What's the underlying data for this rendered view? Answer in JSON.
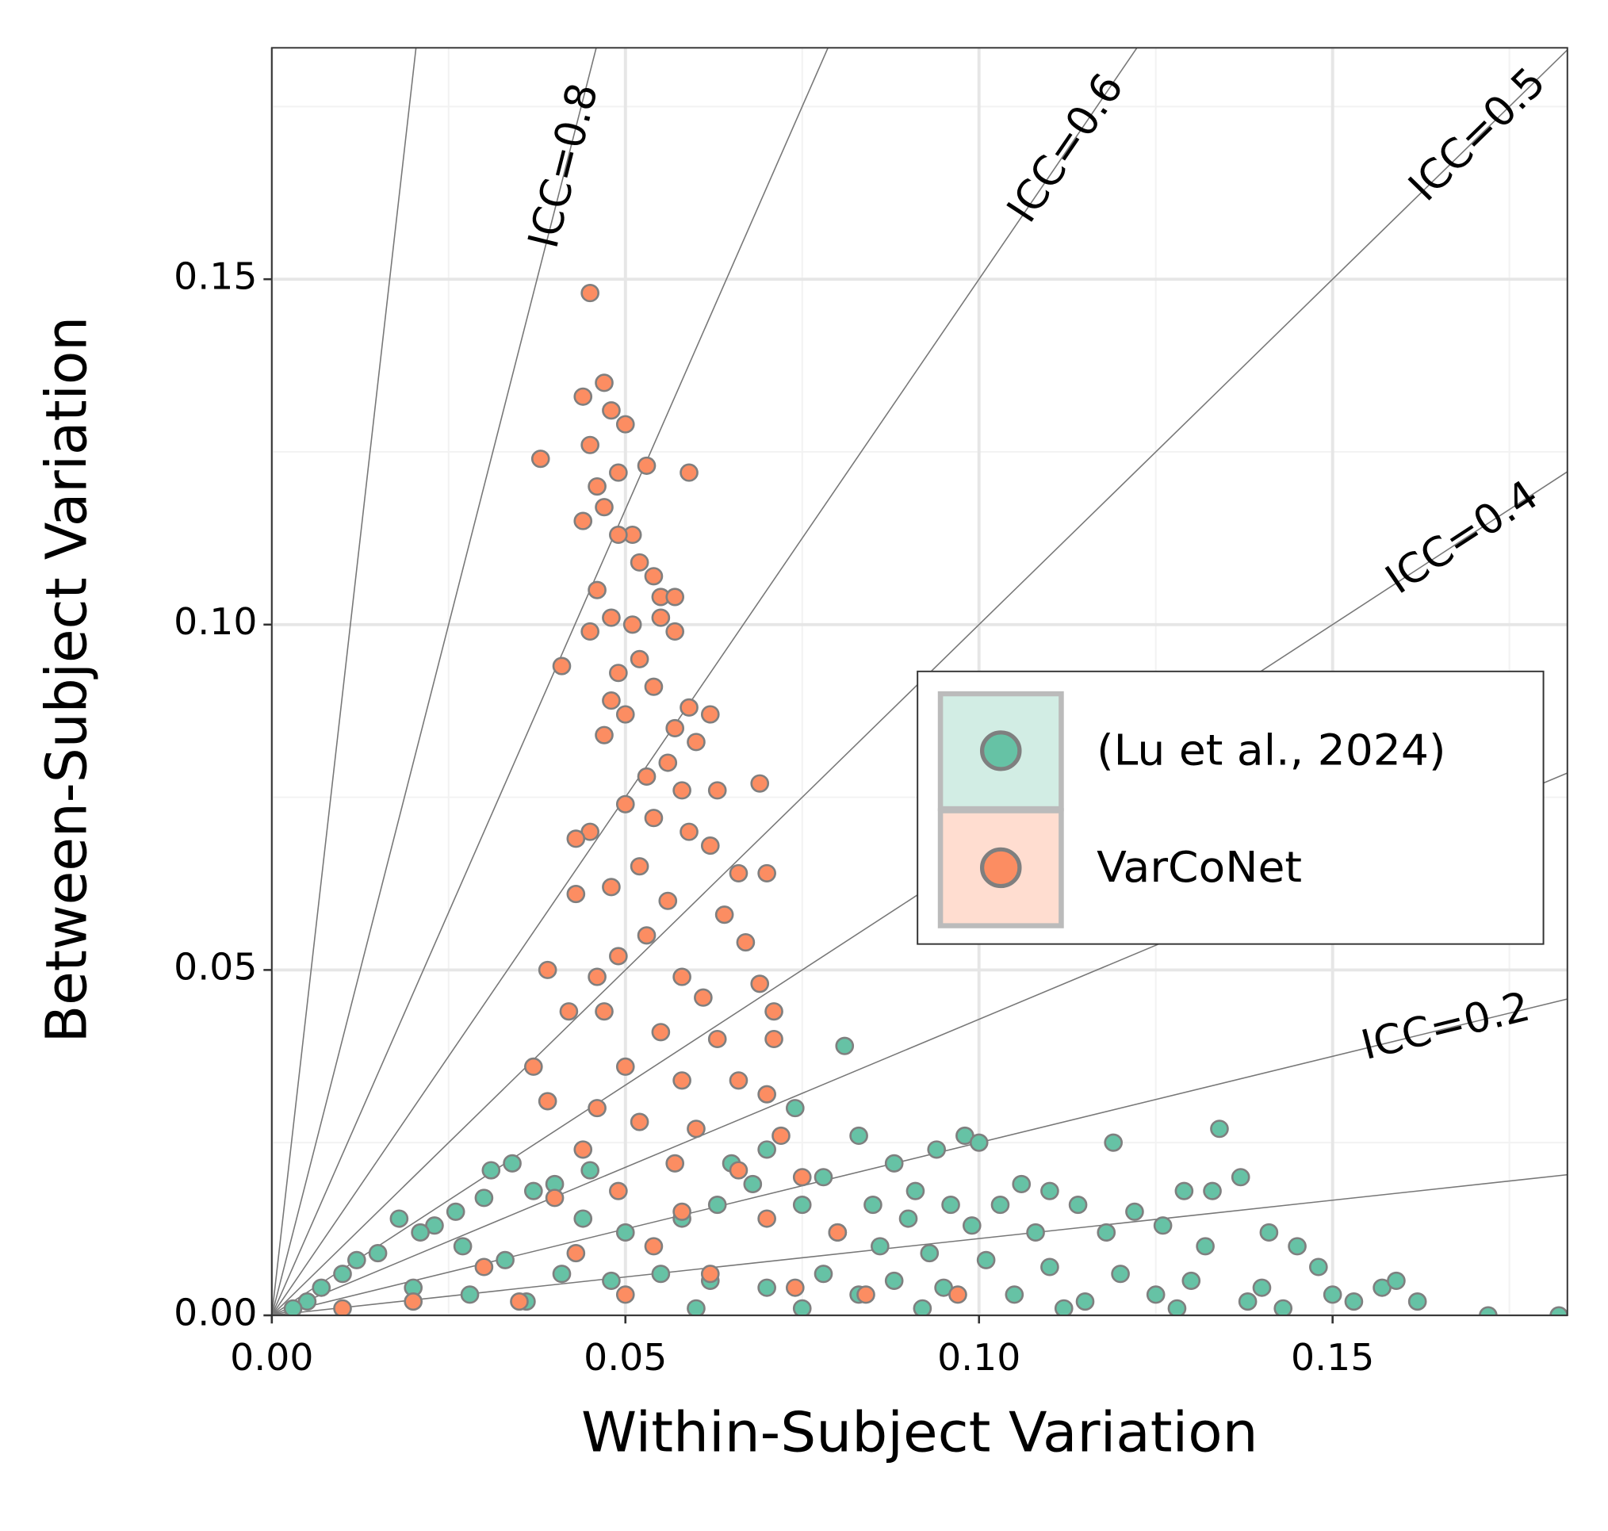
{
  "chart_data": {
    "type": "scatter",
    "xlabel": "Within-Subject Variation",
    "ylabel": "Between-Subject Variation",
    "xlim": [
      0,
      0.1832
    ],
    "ylim": [
      0,
      0.1835
    ],
    "xticks": [
      {
        "value": 0,
        "label": "0.00"
      },
      {
        "value": 0.05,
        "label": "0.05"
      },
      {
        "value": 0.1,
        "label": "0.10"
      },
      {
        "value": 0.15,
        "label": "0.15"
      }
    ],
    "yticks": [
      {
        "value": 0,
        "label": "0.00"
      },
      {
        "value": 0.05,
        "label": "0.05"
      },
      {
        "value": 0.1,
        "label": "0.10"
      },
      {
        "value": 0.15,
        "label": "0.15"
      }
    ],
    "xminor": [
      0.025,
      0.075,
      0.125,
      0.175
    ],
    "yminor": [
      0.025,
      0.075,
      0.125,
      0.175
    ],
    "grid": true,
    "legend": "right",
    "icc_lines": [
      0.1,
      {
        "value": 0.2,
        "label": "ICC=0.2"
      },
      0.3,
      {
        "value": 0.4,
        "label": "ICC=0.4"
      },
      {
        "value": 0.5,
        "label": "ICC=0.5"
      },
      {
        "value": 0.6,
        "label": "ICC=0.6"
      },
      0.7,
      {
        "value": 0.8,
        "label": "ICC=0.8"
      },
      0.9
    ],
    "series": [
      {
        "name": "(Lu et al., 2024)",
        "color": "#66c2a5",
        "x": [
          0.081,
          0.134,
          0.119,
          0.098,
          0.1,
          0.074,
          0.083,
          0.137,
          0.133,
          0.129,
          0.106,
          0.11,
          0.094,
          0.088,
          0.091,
          0.096,
          0.103,
          0.114,
          0.122,
          0.126,
          0.141,
          0.145,
          0.132,
          0.118,
          0.108,
          0.099,
          0.09,
          0.085,
          0.078,
          0.07,
          0.065,
          0.068,
          0.075,
          0.08,
          0.086,
          0.093,
          0.101,
          0.11,
          0.12,
          0.13,
          0.14,
          0.15,
          0.157,
          0.162,
          0.172,
          0.182,
          0.148,
          0.159,
          0.153,
          0.138,
          0.125,
          0.115,
          0.105,
          0.095,
          0.088,
          0.045,
          0.04,
          0.034,
          0.031,
          0.037,
          0.03,
          0.026,
          0.023,
          0.018,
          0.021,
          0.015,
          0.012,
          0.01,
          0.007,
          0.005,
          0.003,
          0.027,
          0.033,
          0.041,
          0.048,
          0.055,
          0.062,
          0.07,
          0.078,
          0.083,
          0.05,
          0.058,
          0.063,
          0.044,
          0.02,
          0.028,
          0.036,
          0.06,
          0.075,
          0.092,
          0.112,
          0.128,
          0.143
        ],
        "y": [
          0.039,
          0.027,
          0.025,
          0.026,
          0.025,
          0.03,
          0.026,
          0.02,
          0.018,
          0.018,
          0.019,
          0.018,
          0.024,
          0.022,
          0.018,
          0.016,
          0.016,
          0.016,
          0.015,
          0.013,
          0.012,
          0.01,
          0.01,
          0.012,
          0.012,
          0.013,
          0.014,
          0.016,
          0.02,
          0.024,
          0.022,
          0.019,
          0.016,
          0.012,
          0.01,
          0.009,
          0.008,
          0.007,
          0.006,
          0.005,
          0.004,
          0.003,
          0.004,
          0.002,
          0.0,
          0.0,
          0.007,
          0.005,
          0.002,
          0.002,
          0.003,
          0.002,
          0.003,
          0.004,
          0.005,
          0.021,
          0.019,
          0.022,
          0.021,
          0.018,
          0.017,
          0.015,
          0.013,
          0.014,
          0.012,
          0.009,
          0.008,
          0.006,
          0.004,
          0.002,
          0.001,
          0.01,
          0.008,
          0.006,
          0.005,
          0.006,
          0.005,
          0.004,
          0.006,
          0.003,
          0.012,
          0.014,
          0.016,
          0.014,
          0.004,
          0.003,
          0.002,
          0.001,
          0.001,
          0.001,
          0.001,
          0.001,
          0.001
        ]
      },
      {
        "name": "VarCoNet",
        "color": "#fc8d62",
        "x": [
          0.045,
          0.047,
          0.044,
          0.048,
          0.05,
          0.038,
          0.045,
          0.053,
          0.059,
          0.049,
          0.046,
          0.047,
          0.044,
          0.051,
          0.049,
          0.052,
          0.054,
          0.046,
          0.055,
          0.057,
          0.048,
          0.051,
          0.045,
          0.055,
          0.057,
          0.041,
          0.049,
          0.052,
          0.054,
          0.059,
          0.062,
          0.048,
          0.05,
          0.057,
          0.047,
          0.06,
          0.056,
          0.053,
          0.058,
          0.063,
          0.069,
          0.05,
          0.054,
          0.045,
          0.043,
          0.059,
          0.062,
          0.066,
          0.07,
          0.052,
          0.048,
          0.043,
          0.056,
          0.064,
          0.067,
          0.053,
          0.049,
          0.039,
          0.046,
          0.058,
          0.061,
          0.069,
          0.071,
          0.047,
          0.042,
          0.055,
          0.063,
          0.071,
          0.037,
          0.05,
          0.058,
          0.066,
          0.07,
          0.046,
          0.039,
          0.052,
          0.06,
          0.072,
          0.044,
          0.057,
          0.066,
          0.075,
          0.049,
          0.04,
          0.058,
          0.07,
          0.08,
          0.054,
          0.043,
          0.03,
          0.062,
          0.074,
          0.084,
          0.02,
          0.01,
          0.097,
          0.05,
          0.035
        ],
        "y": [
          0.148,
          0.135,
          0.133,
          0.131,
          0.129,
          0.124,
          0.126,
          0.123,
          0.122,
          0.122,
          0.12,
          0.117,
          0.115,
          0.113,
          0.113,
          0.109,
          0.107,
          0.105,
          0.104,
          0.104,
          0.101,
          0.1,
          0.099,
          0.101,
          0.099,
          0.094,
          0.093,
          0.095,
          0.091,
          0.088,
          0.087,
          0.089,
          0.087,
          0.085,
          0.084,
          0.083,
          0.08,
          0.078,
          0.076,
          0.076,
          0.077,
          0.074,
          0.072,
          0.07,
          0.069,
          0.07,
          0.068,
          0.064,
          0.064,
          0.065,
          0.062,
          0.061,
          0.06,
          0.058,
          0.054,
          0.055,
          0.052,
          0.05,
          0.049,
          0.049,
          0.046,
          0.048,
          0.044,
          0.044,
          0.044,
          0.041,
          0.04,
          0.04,
          0.036,
          0.036,
          0.034,
          0.034,
          0.032,
          0.03,
          0.031,
          0.028,
          0.027,
          0.026,
          0.024,
          0.022,
          0.021,
          0.02,
          0.018,
          0.017,
          0.015,
          0.014,
          0.012,
          0.01,
          0.009,
          0.007,
          0.006,
          0.004,
          0.003,
          0.002,
          0.001,
          0.003,
          0.003,
          0.002
        ]
      }
    ]
  }
}
